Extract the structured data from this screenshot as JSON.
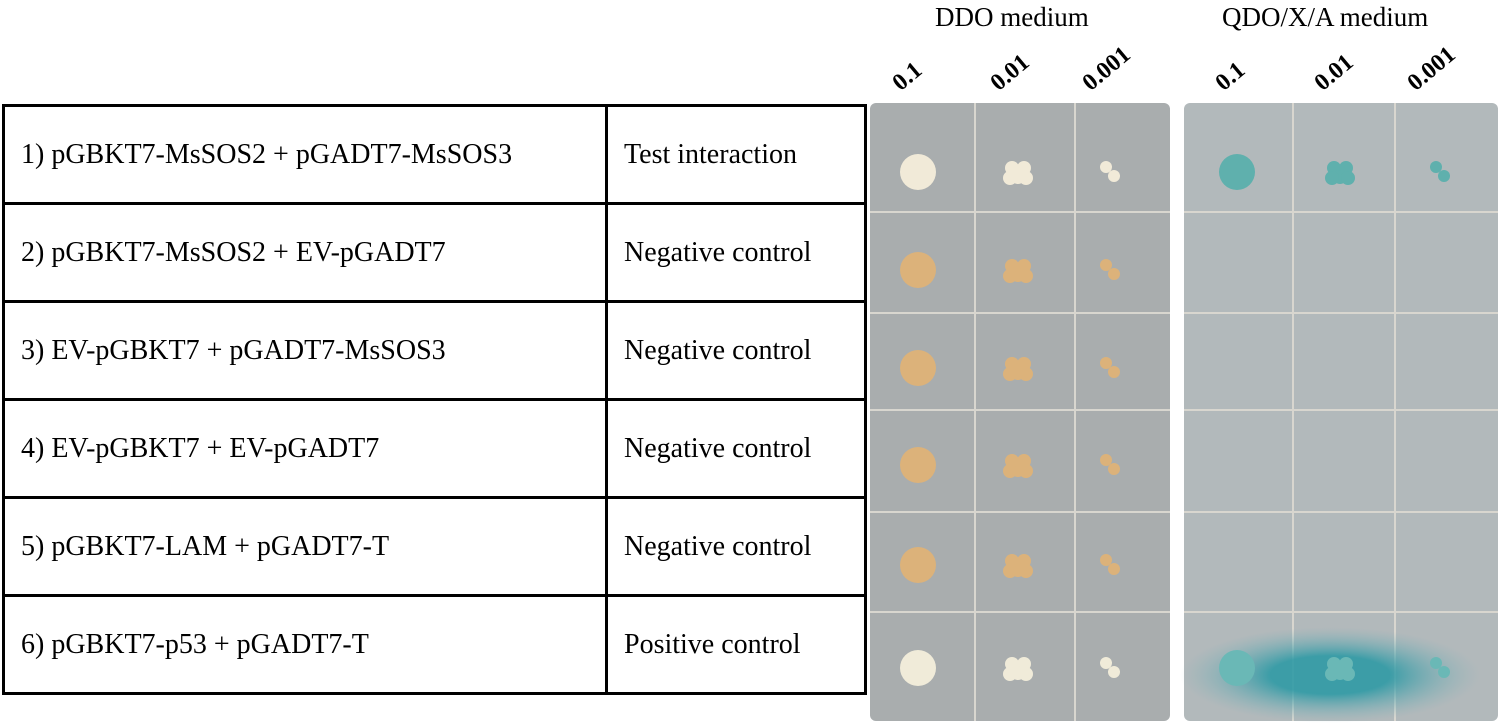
{
  "headers": {
    "ddo": "DDO medium",
    "qdo": "QDO/X/A medium"
  },
  "dilutions": {
    "ddo": [
      "0.1",
      "0.01",
      "0.001"
    ],
    "qdo": [
      "0.1",
      "0.01",
      "0.001"
    ]
  },
  "table": {
    "rows": [
      [
        "1) pGBKT7-MsSOS2 + pGADT7-MsSOS3",
        "Test interaction"
      ],
      [
        "2) pGBKT7-MsSOS2 + EV-pGADT7",
        "Negative control"
      ],
      [
        "3) EV-pGBKT7 + pGADT7-MsSOS3",
        "Negative control"
      ],
      [
        "4) EV-pGBKT7 + EV-pGADT7",
        "Negative control"
      ],
      [
        "5) pGBKT7-LAM +  pGADT7-T",
        "Negative control"
      ],
      [
        "6) pGBKT7-p53 + pGADT7-T",
        "Positive control"
      ]
    ]
  }
}
